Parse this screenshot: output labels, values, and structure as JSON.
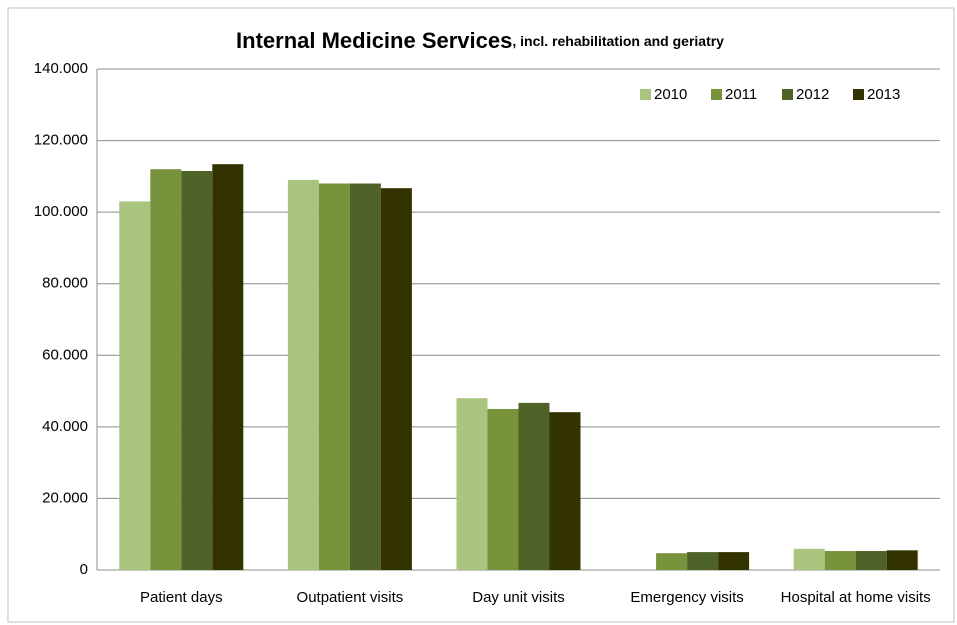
{
  "chart_data": {
    "type": "bar",
    "title": "Internal Medicine Services",
    "subtitle": ", incl. rehabilitation and geriatry",
    "categories": [
      "Patient days",
      "Outpatient visits",
      "Day unit visits",
      "Emergency visits",
      "Hospital at home visits"
    ],
    "series": [
      {
        "name": "2010",
        "color": "#a9c47f",
        "values": [
          103000,
          109000,
          48000,
          null,
          5900
        ]
      },
      {
        "name": "2011",
        "color": "#77933c",
        "values": [
          112000,
          108000,
          45000,
          4700,
          5300
        ]
      },
      {
        "name": "2012",
        "color": "#4f6228",
        "values": [
          111500,
          108000,
          46700,
          5000,
          5300
        ]
      },
      {
        "name": "2013",
        "color": "#333300",
        "values": [
          113400,
          106700,
          44100,
          5000,
          5500
        ]
      }
    ],
    "ylim": [
      0,
      140000
    ],
    "yticks": [
      0,
      {
        "value": 20000,
        "label": "20.000"
      },
      {
        "value": 40000,
        "label": "40.000"
      },
      {
        "value": 60000,
        "label": "60.000"
      },
      {
        "value": 80000,
        "label": "80.000"
      },
      {
        "value": 100000,
        "label": "100.000"
      },
      {
        "value": 120000,
        "label": "120.000"
      },
      {
        "value": 140000,
        "label": "140.000"
      }
    ],
    "grid": true,
    "legend": "top-right"
  }
}
